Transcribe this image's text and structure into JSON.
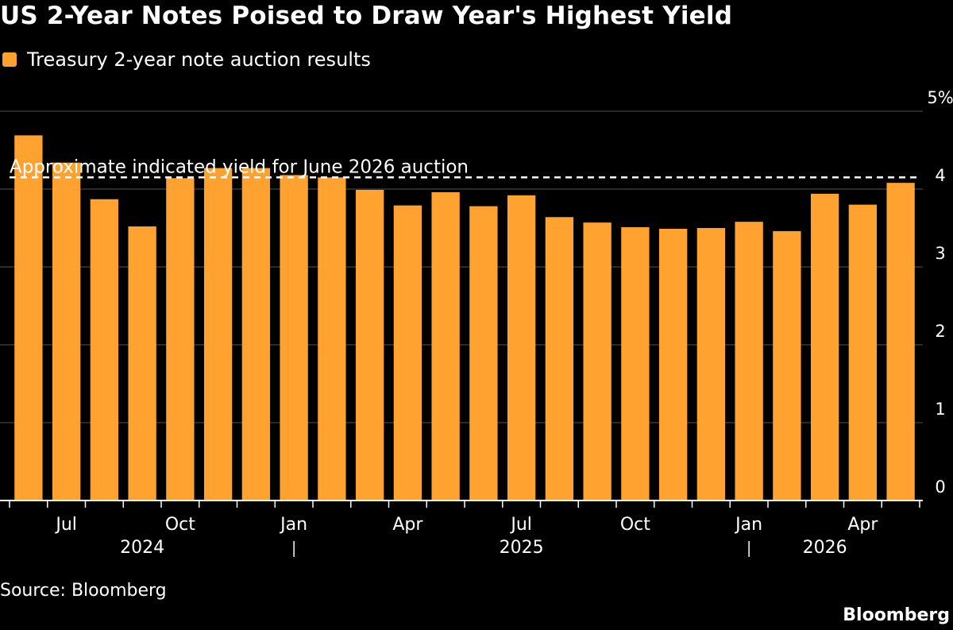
{
  "header": {
    "title": "US 2-Year Notes Poised to Draw Year's Highest Yield"
  },
  "footer": {
    "source": "Source: Bloomberg",
    "brand": "Bloomberg"
  },
  "colors": {
    "bar": "#FFA230",
    "background": "#000000",
    "grid": "#555555",
    "text": "#FFFFFF"
  },
  "chart_data": {
    "type": "bar",
    "legend": {
      "position": "top-left",
      "entries": [
        "Treasury 2-year note auction results"
      ]
    },
    "series": [
      {
        "name": "Treasury 2-year note auction results",
        "x": [
          "2024-06",
          "2024-07",
          "2024-08",
          "2024-09",
          "2024-10",
          "2024-11",
          "2024-12",
          "2025-01",
          "2025-02",
          "2025-03",
          "2025-04",
          "2025-05",
          "2025-06",
          "2025-07",
          "2025-08",
          "2025-09",
          "2025-10",
          "2025-11",
          "2025-12",
          "2026-01",
          "2026-02",
          "2026-03",
          "2026-04",
          "2026-05"
        ],
        "values": [
          4.69,
          4.34,
          3.87,
          3.52,
          4.14,
          4.27,
          4.27,
          4.18,
          4.15,
          3.99,
          3.79,
          3.96,
          3.78,
          3.92,
          3.64,
          3.57,
          3.51,
          3.49,
          3.5,
          3.58,
          3.46,
          3.94,
          3.8,
          4.08
        ]
      }
    ],
    "reference_line": {
      "value": 4.15,
      "label": "Approximate indicated yield for June 2026 auction"
    },
    "ylim": [
      0,
      5
    ],
    "yticks": [
      {
        "value": 0,
        "label": "0"
      },
      {
        "value": 1,
        "label": "1"
      },
      {
        "value": 2,
        "label": "2"
      },
      {
        "value": 3,
        "label": "3"
      },
      {
        "value": 4,
        "label": "4"
      },
      {
        "value": 5,
        "label": "5%"
      }
    ],
    "grid": true,
    "xaxis": {
      "month_labels": [
        {
          "month": "2024-07",
          "label": "Jul"
        },
        {
          "month": "2024-10",
          "label": "Oct"
        },
        {
          "month": "2025-01",
          "label": "Jan"
        },
        {
          "month": "2025-04",
          "label": "Apr"
        },
        {
          "month": "2025-07",
          "label": "Jul"
        },
        {
          "month": "2025-10",
          "label": "Oct"
        },
        {
          "month": "2026-01",
          "label": "Jan"
        },
        {
          "month": "2026-04",
          "label": "Apr"
        }
      ],
      "year_labels": [
        {
          "month": "2024-09",
          "label": "2024"
        },
        {
          "month": "2025-07",
          "label": "2025"
        },
        {
          "month": "2026-03",
          "label": "2026"
        }
      ],
      "year_separators": [
        "2025-01",
        "2026-01"
      ]
    }
  }
}
